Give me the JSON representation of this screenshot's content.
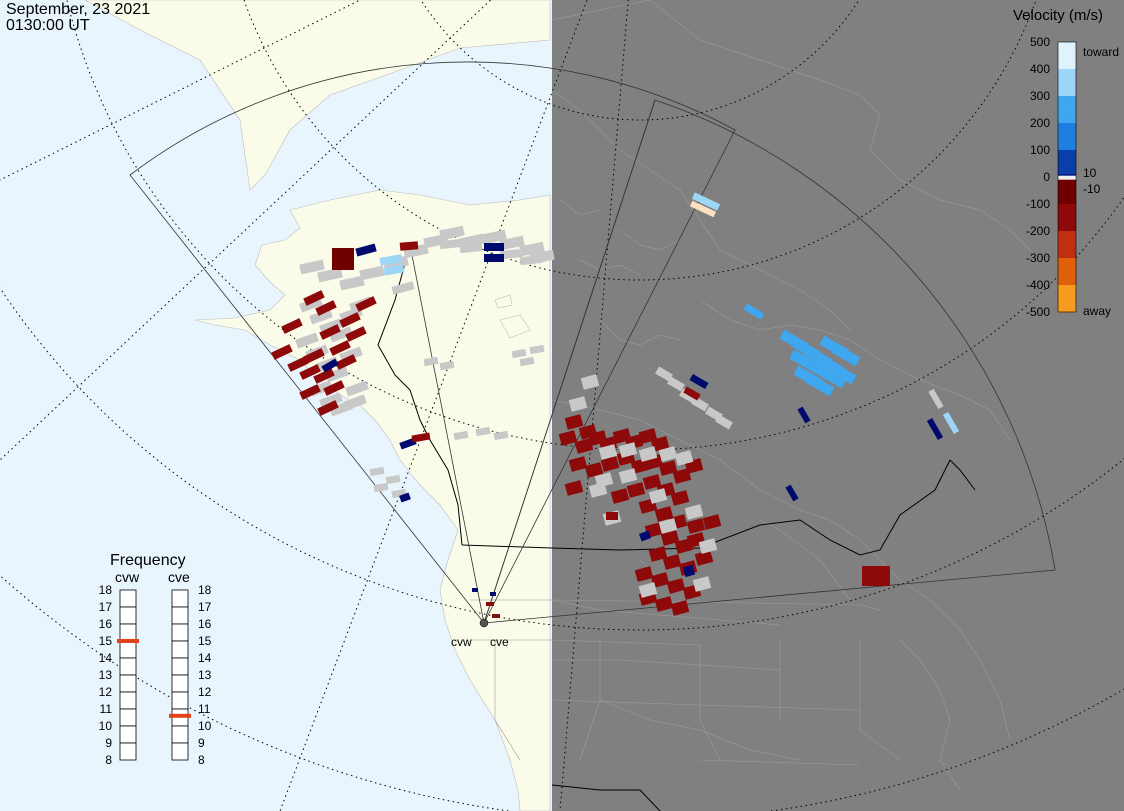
{
  "header": {
    "date": "September, 23 2021",
    "time": "0130:00 UT"
  },
  "radars": [
    {
      "id": "cvw",
      "label": "cvw"
    },
    {
      "id": "cve",
      "label": "cve"
    }
  ],
  "frequency_panel": {
    "title": "Frequency",
    "ticks": [
      "18",
      "17",
      "16",
      "15",
      "14",
      "13",
      "12",
      "11",
      "10",
      "9",
      "8"
    ],
    "cvw_label": "cvw",
    "cve_label": "cve",
    "cvw_freq_mhz": 15.0,
    "cve_freq_mhz": 10.6
  },
  "velocity_scale": {
    "title": "Velocity (m/s)",
    "ticks": [
      "500",
      "400",
      "300",
      "200",
      "100",
      "0",
      "-100",
      "-200",
      "-300",
      "-400",
      "-500"
    ],
    "inner_ticks": [
      "10",
      "-10"
    ],
    "toward_label": "toward",
    "away_label": "away"
  },
  "colors": {
    "ocean": "#e8f5fd",
    "land": "#fbfbe9",
    "night": "#808080",
    "ground_scatter": "#c8c8c8",
    "freq_marker": "#e2431a"
  }
}
